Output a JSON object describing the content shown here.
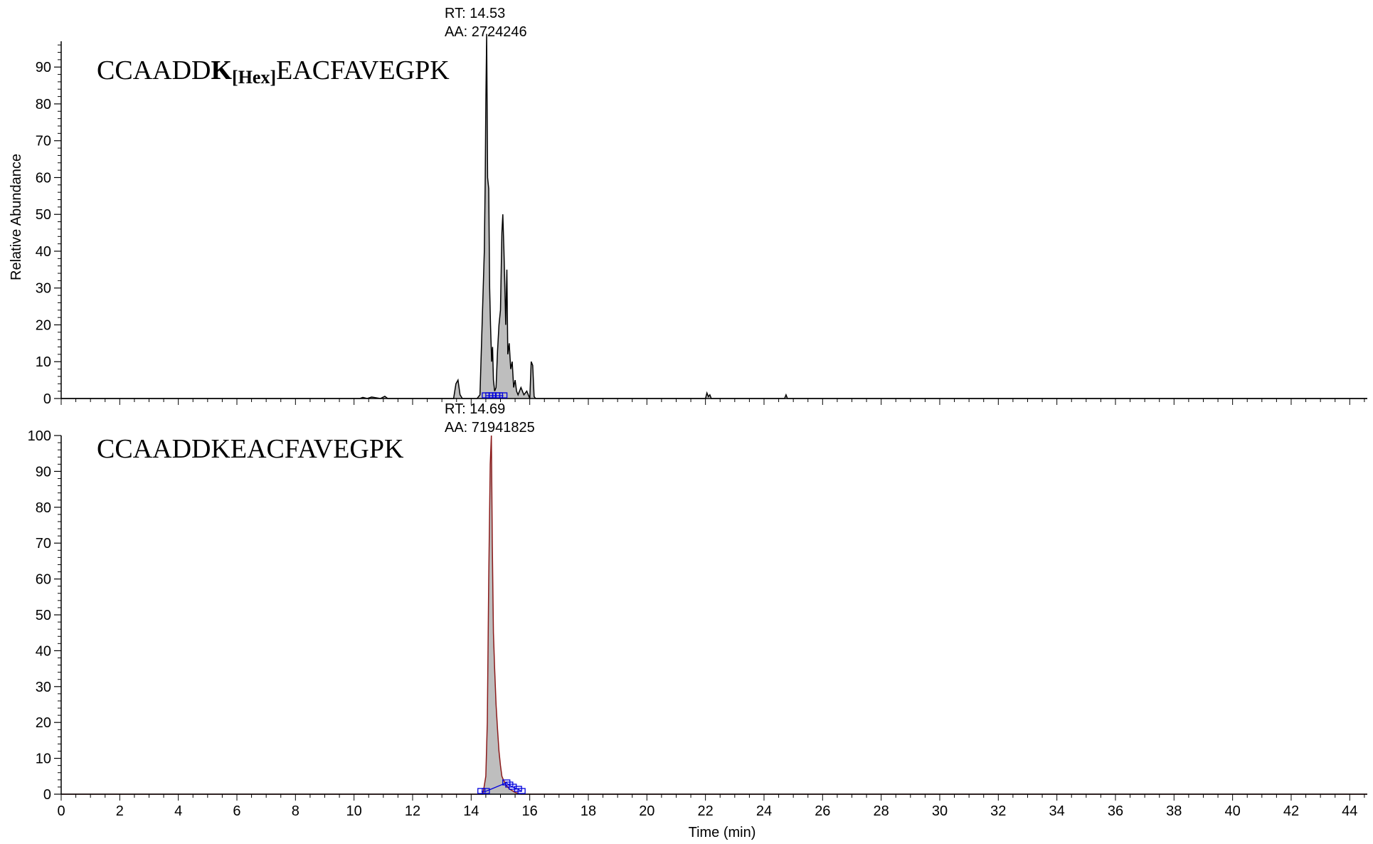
{
  "chart_data": [
    {
      "type": "area",
      "panel": "top",
      "title_parts": {
        "prefix": "CCAADD",
        "residue": "K",
        "modification": "[Hex]",
        "suffix": "EACFAVEGPK"
      },
      "ylabel": "Relative Abundance",
      "xlabel": "",
      "xlim": [
        0,
        44.6
      ],
      "ylim": [
        0,
        97
      ],
      "y_ticks": [
        "0",
        "10",
        "20",
        "30",
        "40",
        "50",
        "60",
        "70",
        "80",
        "90"
      ],
      "annotation": {
        "rt": "RT: 14.53",
        "aa": "AA: 2724246"
      },
      "line_color": "#000000",
      "fill_color": "#bebebe",
      "series": [
        {
          "x": [
            0,
            10.2,
            10.3,
            10.45,
            10.6,
            10.9,
            11.05,
            11.15,
            11.3,
            13.4,
            13.48,
            13.55,
            13.62,
            13.7,
            14.2,
            14.3,
            14.45,
            14.48,
            14.5,
            14.53,
            14.56,
            14.6,
            14.63,
            14.66,
            14.7,
            14.73,
            14.76,
            14.8,
            14.85,
            14.9,
            14.95,
            15.0,
            15.05,
            15.08,
            15.12,
            15.15,
            15.18,
            15.22,
            15.25,
            15.3,
            15.35,
            15.4,
            15.45,
            15.5,
            15.55,
            15.6,
            15.7,
            15.8,
            15.9,
            16.0,
            16.05,
            16.1,
            16.15,
            16.2,
            16.3,
            22.0,
            22.05,
            22.1,
            22.15,
            22.2,
            22.3,
            24.7,
            24.75,
            24.8,
            24.9,
            44.6
          ],
          "y": [
            0,
            0,
            0.3,
            0,
            0.4,
            0,
            0.6,
            0,
            0,
            0,
            4,
            5,
            1,
            0,
            0,
            1,
            40,
            60,
            80,
            99,
            60,
            57,
            30,
            20,
            10,
            14,
            5,
            2,
            3,
            13,
            20,
            24,
            45,
            50,
            40,
            30,
            20,
            35,
            12,
            15,
            8,
            10,
            3,
            5,
            2,
            1,
            3,
            1,
            2,
            0,
            10,
            9,
            0.5,
            0,
            0,
            0,
            1.5,
            0.5,
            1,
            0,
            0,
            0,
            1,
            0,
            0,
            0
          ]
        }
      ],
      "baseline_markers_x": [
        14.5,
        14.62,
        14.73,
        14.85,
        14.95,
        15.1
      ]
    },
    {
      "type": "area",
      "panel": "bottom",
      "title": "CCAADDKEACFAVEGPK",
      "ylabel": "",
      "xlabel": "Time (min)",
      "xlim": [
        0,
        44.6
      ],
      "ylim": [
        0,
        100
      ],
      "y_ticks": [
        "0",
        "10",
        "20",
        "30",
        "40",
        "50",
        "60",
        "70",
        "80",
        "90",
        "100"
      ],
      "x_ticks": [
        "0",
        "2",
        "4",
        "6",
        "8",
        "10",
        "12",
        "14",
        "16",
        "18",
        "20",
        "22",
        "24",
        "26",
        "28",
        "30",
        "32",
        "34",
        "36",
        "38",
        "40",
        "42",
        "44"
      ],
      "annotation": {
        "rt": "RT: 14.69",
        "aa": "AA: 71941825"
      },
      "line_color": "#8b1a1a",
      "fill_color": "#bebebe",
      "series": [
        {
          "x": [
            0,
            14.4,
            14.5,
            14.55,
            14.6,
            14.65,
            14.69,
            14.72,
            14.76,
            14.8,
            14.85,
            14.9,
            14.95,
            15.0,
            15.05,
            15.1,
            15.2,
            15.3,
            15.4,
            15.5,
            15.7,
            44.6
          ],
          "y": [
            0,
            0,
            5,
            20,
            60,
            92,
            100,
            70,
            45,
            35,
            25,
            18,
            12,
            8,
            5,
            4,
            2.5,
            1.5,
            1,
            0.5,
            0,
            0
          ]
        }
      ],
      "baseline_markers_x": [
        14.35,
        14.5,
        15.2,
        15.3,
        15.42,
        15.6,
        15.72
      ],
      "baseline_marker_color": "#0000dd"
    }
  ]
}
